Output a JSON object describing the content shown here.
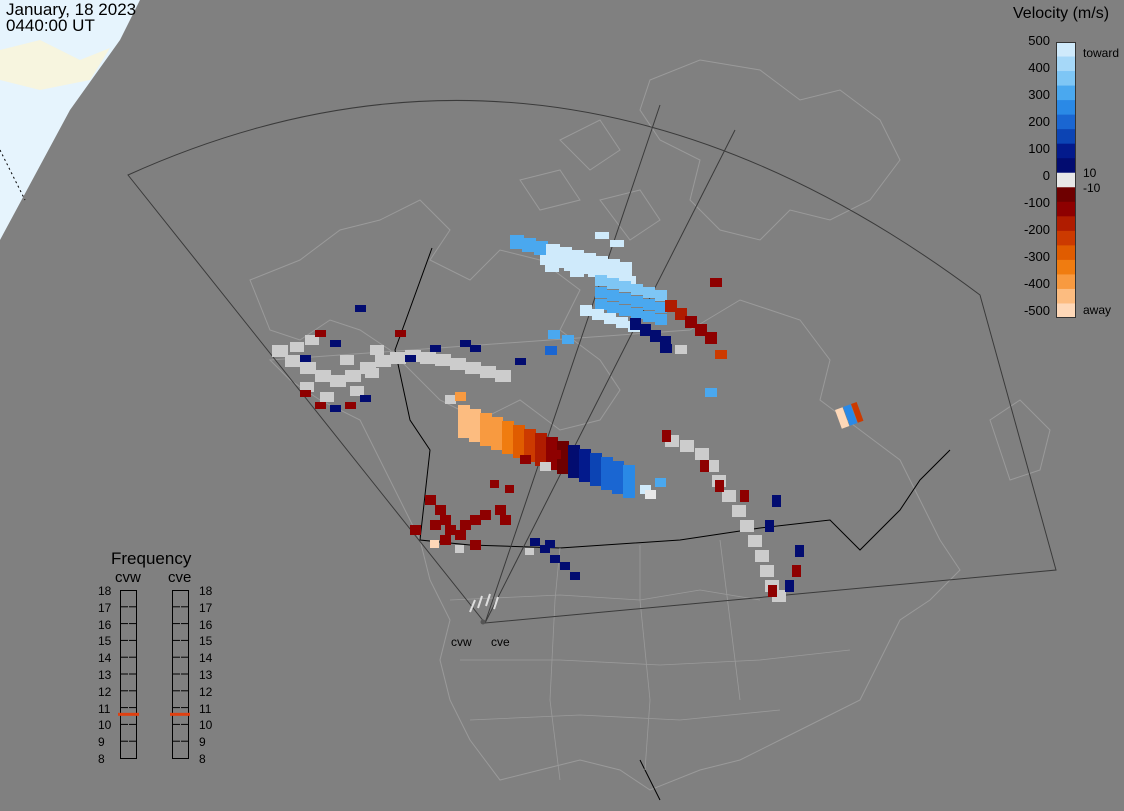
{
  "header": {
    "date": "January, 18 2023",
    "time": "0440:00 UT"
  },
  "velocity_scale": {
    "title": "Velocity (m/s)",
    "ticks": [
      "500",
      "400",
      "300",
      "200",
      "100",
      "0",
      "-100",
      "-200",
      "-300",
      "-400",
      "-500"
    ],
    "inner_ticks": [
      "10",
      "-10"
    ],
    "top_label": "toward",
    "bottom_label": "away",
    "colors_top_to_bottom": [
      "#cfeafb",
      "#a6d8f8",
      "#7ec6f5",
      "#4aa8ef",
      "#2a89e6",
      "#1a66d2",
      "#0c44b4",
      "#031a8c",
      "#020c70",
      "#e8e8e8",
      "#6e0000",
      "#8e0000",
      "#b01c00",
      "#cc3a00",
      "#e05c00",
      "#f07c10",
      "#f89a40",
      "#fcbc80",
      "#fed8b8"
    ]
  },
  "frequency_panel": {
    "title": "Frequency",
    "radars": [
      "cvw",
      "cve"
    ],
    "levels": [
      "18",
      "17",
      "16",
      "15",
      "14",
      "13",
      "12",
      "11",
      "10",
      "9",
      "8"
    ],
    "cvw_frequency_mhz": 10.6,
    "cve_frequency_mhz": 10.6,
    "marker_color": "#e04010"
  },
  "map": {
    "radar_labels": [
      "cvw",
      "cve"
    ],
    "land_outline_color": "#9a9a9a",
    "fov_color": "#3a3a3a",
    "daylight_color": "#e6f4fd",
    "ice_color": "#f7f5df"
  }
}
